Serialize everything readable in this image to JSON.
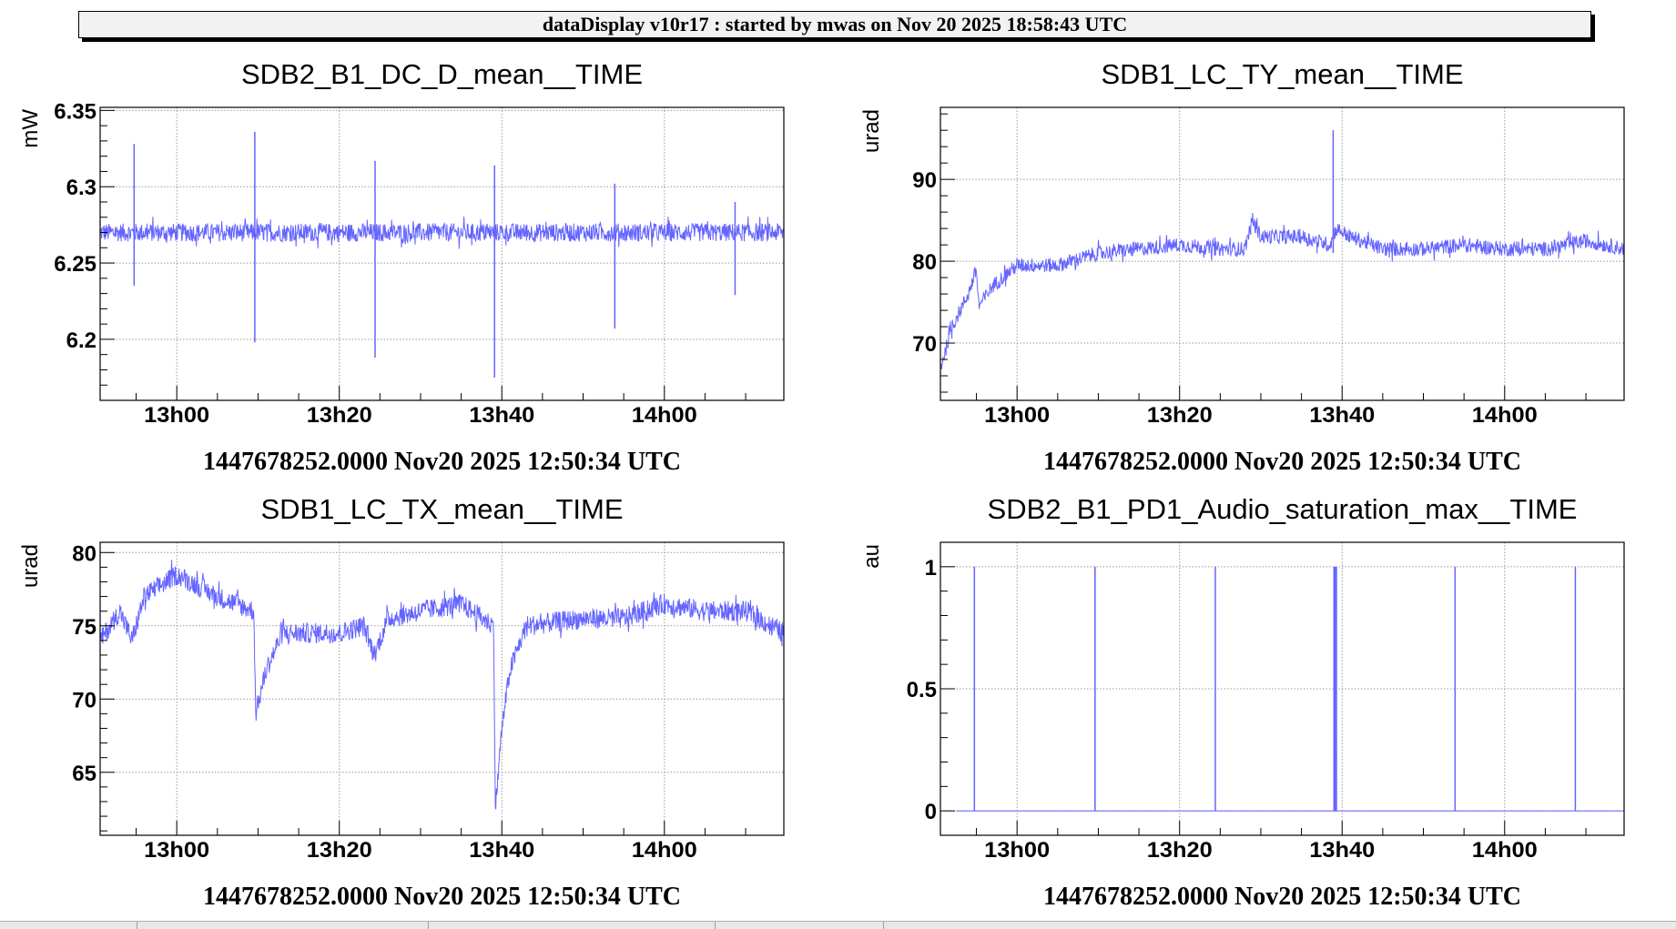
{
  "header": {
    "title": "dataDisplay v10r17 : started by mwas on Nov 20 2025 18:58:43 UTC"
  },
  "colors": {
    "series": "#6464ff",
    "grid": "#999999",
    "frame": "#000000"
  },
  "chart_data": [
    {
      "type": "line",
      "title": "SDB2_B1_DC_D_mean__TIME",
      "ylabel": "mW",
      "xlabel": "1447678252.0000 Nov20 2025 12:50:34 UTC",
      "x_units": "minutes after 12:00 UTC",
      "xlim": [
        50.57,
        134.7
      ],
      "ylim": [
        6.16,
        6.352
      ],
      "xticks": [
        {
          "v": 60,
          "label": "13h00"
        },
        {
          "v": 80,
          "label": "13h20"
        },
        {
          "v": 100,
          "label": "13h40"
        },
        {
          "v": 120,
          "label": "14h00"
        }
      ],
      "yticks": [
        {
          "v": 6.2,
          "label": "6.2"
        },
        {
          "v": 6.25,
          "label": "6.25"
        },
        {
          "v": 6.3,
          "label": "6.3"
        },
        {
          "v": 6.35,
          "label": "6.35"
        }
      ],
      "yminor": 0.01,
      "grid": true,
      "baseline": [
        [
          50.57,
          6.27
        ],
        [
          134.7,
          6.27
        ]
      ],
      "noise": 0.006,
      "spikes": [
        [
          54.75,
          6.328,
          6.235
        ],
        [
          69.6,
          6.336,
          6.198
        ],
        [
          84.4,
          6.317,
          6.188
        ],
        [
          99.1,
          6.314,
          6.175
        ],
        [
          113.9,
          6.302,
          6.207
        ],
        [
          128.7,
          6.29,
          6.229
        ]
      ]
    },
    {
      "type": "line",
      "title": "SDB1_LC_TY_mean__TIME",
      "ylabel": "urad",
      "xlabel": "1447678252.0000 Nov20 2025 12:50:34 UTC",
      "x_units": "minutes after 12:00 UTC",
      "xlim": [
        50.57,
        134.7
      ],
      "ylim": [
        63,
        98.8
      ],
      "xticks": [
        {
          "v": 60,
          "label": "13h00"
        },
        {
          "v": 80,
          "label": "13h20"
        },
        {
          "v": 100,
          "label": "13h40"
        },
        {
          "v": 120,
          "label": "14h00"
        }
      ],
      "yticks": [
        {
          "v": 70,
          "label": "70"
        },
        {
          "v": 80,
          "label": "80"
        },
        {
          "v": 90,
          "label": "90"
        }
      ],
      "yminor": 2,
      "grid": true,
      "baseline": [
        [
          50.6,
          67
        ],
        [
          52,
          72
        ],
        [
          54,
          76
        ],
        [
          55,
          79
        ],
        [
          55.3,
          74.5
        ],
        [
          57,
          77
        ],
        [
          60,
          79.5
        ],
        [
          65,
          79.5
        ],
        [
          70,
          81
        ],
        [
          75,
          81.5
        ],
        [
          80,
          82
        ],
        [
          85,
          81.5
        ],
        [
          88,
          81.5
        ],
        [
          89,
          85
        ],
        [
          90,
          83
        ],
        [
          95,
          83
        ],
        [
          98.5,
          82
        ],
        [
          99.3,
          84
        ],
        [
          101,
          83
        ],
        [
          105,
          81.5
        ],
        [
          110,
          81.5
        ],
        [
          115,
          82
        ],
        [
          120,
          81.5
        ],
        [
          125,
          81.5
        ],
        [
          130,
          82.5
        ],
        [
          134.7,
          81.5
        ]
      ],
      "noise": 0.9,
      "spikes": [
        [
          98.9,
          96,
          81
        ]
      ]
    },
    {
      "type": "line",
      "title": "SDB1_LC_TX_mean__TIME",
      "ylabel": "urad",
      "xlabel": "1447678252.0000 Nov20 2025 12:50:34 UTC",
      "x_units": "minutes after 12:00 UTC",
      "xlim": [
        50.57,
        134.7
      ],
      "ylim": [
        60.7,
        80.7
      ],
      "xticks": [
        {
          "v": 60,
          "label": "13h00"
        },
        {
          "v": 80,
          "label": "13h20"
        },
        {
          "v": 100,
          "label": "13h40"
        },
        {
          "v": 120,
          "label": "14h00"
        }
      ],
      "yticks": [
        {
          "v": 65,
          "label": "65"
        },
        {
          "v": 70,
          "label": "70"
        },
        {
          "v": 75,
          "label": "75"
        },
        {
          "v": 80,
          "label": "80"
        }
      ],
      "yminor": 1,
      "grid": true,
      "baseline": [
        [
          50.6,
          74
        ],
        [
          53,
          76
        ],
        [
          54.5,
          74
        ],
        [
          56,
          77
        ],
        [
          60,
          78.5
        ],
        [
          65,
          77
        ],
        [
          69.5,
          76
        ],
        [
          69.7,
          69
        ],
        [
          71,
          72
        ],
        [
          73,
          74.5
        ],
        [
          80,
          74.5
        ],
        [
          83,
          75
        ],
        [
          84.3,
          73
        ],
        [
          86,
          75.5
        ],
        [
          90,
          76
        ],
        [
          95,
          76.5
        ],
        [
          99,
          75
        ],
        [
          99.2,
          62.5
        ],
        [
          100,
          68
        ],
        [
          101,
          72
        ],
        [
          103,
          75
        ],
        [
          110,
          75.5
        ],
        [
          115,
          75.5
        ],
        [
          120,
          76.5
        ],
        [
          125,
          76
        ],
        [
          130,
          76
        ],
        [
          134.7,
          74.5
        ]
      ],
      "noise": 0.7,
      "spikes": []
    },
    {
      "type": "line",
      "title": "SDB2_B1_PD1_Audio_saturation_max__TIME",
      "ylabel": "au",
      "xlabel": "1447678252.0000 Nov20 2025 12:50:34 UTC",
      "x_units": "minutes after 12:00 UTC",
      "xlim": [
        50.57,
        134.7
      ],
      "ylim": [
        -0.1,
        1.1
      ],
      "xticks": [
        {
          "v": 60,
          "label": "13h00"
        },
        {
          "v": 80,
          "label": "13h20"
        },
        {
          "v": 100,
          "label": "13h40"
        },
        {
          "v": 120,
          "label": "14h00"
        }
      ],
      "yticks": [
        {
          "v": 0,
          "label": "0"
        },
        {
          "v": 0.5,
          "label": "0.5"
        },
        {
          "v": 1,
          "label": "1"
        }
      ],
      "yminor": 0.1,
      "grid": true,
      "baseline": [
        [
          52.5,
          0
        ],
        [
          134.7,
          0
        ]
      ],
      "noise": 0,
      "spikes": [
        [
          54.75,
          1,
          0
        ],
        [
          69.6,
          1,
          0
        ],
        [
          84.4,
          1,
          0
        ],
        [
          99.0,
          1,
          0
        ],
        [
          99.15,
          1,
          0
        ],
        [
          99.3,
          1,
          0
        ],
        [
          113.9,
          1,
          0
        ],
        [
          128.7,
          1,
          0
        ]
      ]
    }
  ]
}
